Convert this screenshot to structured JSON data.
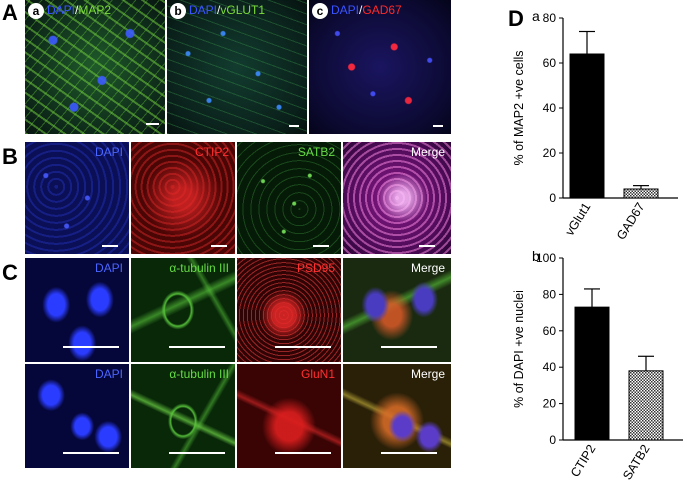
{
  "panels": {
    "A": {
      "letter": "A",
      "images": [
        {
          "sub": "a",
          "stain1": "DAPI",
          "sep": "/",
          "stain2": "MAP2",
          "color1": "#3a55ff",
          "color2": "#7ddc3a"
        },
        {
          "sub": "b",
          "stain1": "DAPI",
          "sep": "/",
          "stain2": "vGLUT1",
          "color1": "#3a55ff",
          "color2": "#7ddc3a"
        },
        {
          "sub": "c",
          "stain1": "DAPI",
          "sep": "/",
          "stain2": "GAD67",
          "color1": "#3a55ff",
          "color2": "#ff2a2a"
        }
      ]
    },
    "B": {
      "letter": "B",
      "labels": [
        {
          "text": "DAPI",
          "color": "#4a66ff"
        },
        {
          "text": "CTIP2",
          "color": "#ff3030"
        },
        {
          "text": "SATB2",
          "color": "#66dd44"
        },
        {
          "text": "Merge",
          "color": "#ffffff"
        }
      ]
    },
    "C": {
      "letter": "C",
      "row1": [
        {
          "text": "DAPI",
          "color": "#4a66ff"
        },
        {
          "text": "α-tubulin III",
          "color": "#66dd44"
        },
        {
          "text": "PSD95",
          "color": "#ff3030"
        },
        {
          "text": "Merge",
          "color": "#ffffff"
        }
      ],
      "row2": [
        {
          "text": "DAPI",
          "color": "#4a66ff"
        },
        {
          "text": "α-tubulin III",
          "color": "#66dd44"
        },
        {
          "text": "GluN1",
          "color": "#ff3030"
        },
        {
          "text": "Merge",
          "color": "#ffffff"
        }
      ]
    },
    "D": {
      "letter": "D"
    }
  },
  "chart_data": [
    {
      "type": "bar",
      "panel": "a",
      "categories": [
        "vGlut1",
        "GAD67"
      ],
      "values": [
        64,
        4
      ],
      "errors": [
        10,
        1.5
      ],
      "ylabel": "% of MAP2 +ve cells",
      "ylim": [
        0,
        80
      ],
      "yticks": [
        "0",
        "20",
        "40",
        "60",
        "80"
      ],
      "fills": [
        "solid",
        "hatched"
      ]
    },
    {
      "type": "bar",
      "panel": "b",
      "categories": [
        "CTIP2",
        "SATB2"
      ],
      "values": [
        73,
        38
      ],
      "errors": [
        10,
        8
      ],
      "ylabel": "% of DAPI +ve nuclei",
      "ylim": [
        0,
        100
      ],
      "yticks": [
        "0",
        "20",
        "40",
        "60",
        "80",
        "100"
      ],
      "fills": [
        "solid",
        "hatched"
      ]
    }
  ]
}
